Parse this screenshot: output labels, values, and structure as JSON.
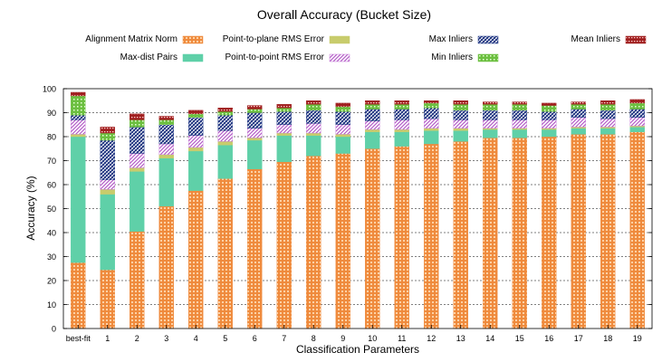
{
  "chart_data": {
    "type": "bar",
    "stacked": true,
    "title": "Overall Accuracy (Bucket Size)",
    "xlabel": "Classification Parameters",
    "ylabel": "Accuracy (%)",
    "ylim": [
      0,
      100
    ],
    "yticks": [
      0,
      10,
      20,
      30,
      40,
      50,
      60,
      70,
      80,
      90,
      100
    ],
    "grid": "horizontal dashed",
    "categories": [
      "best-fit",
      "1",
      "2",
      "3",
      "4",
      "5",
      "6",
      "7",
      "8",
      "9",
      "10",
      "11",
      "12",
      "13",
      "14",
      "15",
      "16",
      "17",
      "18",
      "19"
    ],
    "series": [
      {
        "name": "Alignment Matrix Norm",
        "color": "#ef8a3c",
        "pattern": "circles",
        "values": [
          27.5,
          24.5,
          40.5,
          51,
          57.5,
          62.5,
          66.5,
          69.5,
          72,
          73,
          75,
          76,
          77,
          78,
          79.5,
          79.5,
          80,
          81,
          81,
          82
        ]
      },
      {
        "name": "Max-dist Pairs",
        "color": "#5fd0a8",
        "pattern": "solid",
        "values": [
          52.5,
          31.5,
          25,
          20,
          16.5,
          14,
          12,
          11,
          8.5,
          7,
          7,
          6,
          5.5,
          4.5,
          3.5,
          3.5,
          3,
          2.5,
          2.5,
          2
        ]
      },
      {
        "name": "Point-to-plane RMS Error",
        "color": "#c8cc6c",
        "pattern": "solid",
        "values": [
          1,
          2,
          1.5,
          1.5,
          1.5,
          1.5,
          1,
          1,
          1,
          1,
          1,
          1,
          1,
          1,
          0.5,
          0.5,
          0.5,
          0.5,
          0.5,
          0.5
        ]
      },
      {
        "name": "Point-to-point RMS Error",
        "color": "#c77fd8",
        "pattern": "diagonal",
        "values": [
          6,
          4,
          6,
          4.5,
          5,
          4.5,
          4,
          3.5,
          4,
          4,
          3.5,
          4,
          4,
          3.5,
          3.5,
          3.5,
          3.5,
          4,
          3.5,
          3.5
        ]
      },
      {
        "name": "Max Inliers",
        "color": "#263f8c",
        "pattern": "crosshatch",
        "values": [
          2,
          16.5,
          11,
          8,
          7.5,
          6.5,
          6.5,
          5.5,
          5.5,
          5.5,
          5,
          4.5,
          4.5,
          4,
          4,
          4,
          3.5,
          3.5,
          3.5,
          3.5
        ]
      },
      {
        "name": "Min Inliers",
        "color": "#6cbf40",
        "pattern": "dots",
        "values": [
          8,
          3,
          3,
          2,
          1.5,
          1.5,
          1.5,
          1.5,
          2.5,
          2,
          2,
          2,
          2,
          2.5,
          2.5,
          2.5,
          2.5,
          2,
          2.5,
          2.5
        ]
      },
      {
        "name": "Mean Inliers",
        "color": "#a02020",
        "pattern": "bricks",
        "values": [
          1.5,
          2.5,
          2.5,
          1.5,
          1.5,
          1.5,
          1.5,
          1.5,
          1.5,
          1.5,
          1.5,
          1.5,
          1,
          1.5,
          1,
          1,
          1,
          1,
          1.5,
          1.5
        ]
      }
    ],
    "legend": {
      "placement": "top",
      "entries": [
        "Alignment Matrix Norm",
        "Max-dist Pairs",
        "Point-to-plane RMS Error",
        "Point-to-point RMS Error",
        "Max Inliers",
        "Min Inliers",
        "Mean Inliers"
      ]
    }
  }
}
